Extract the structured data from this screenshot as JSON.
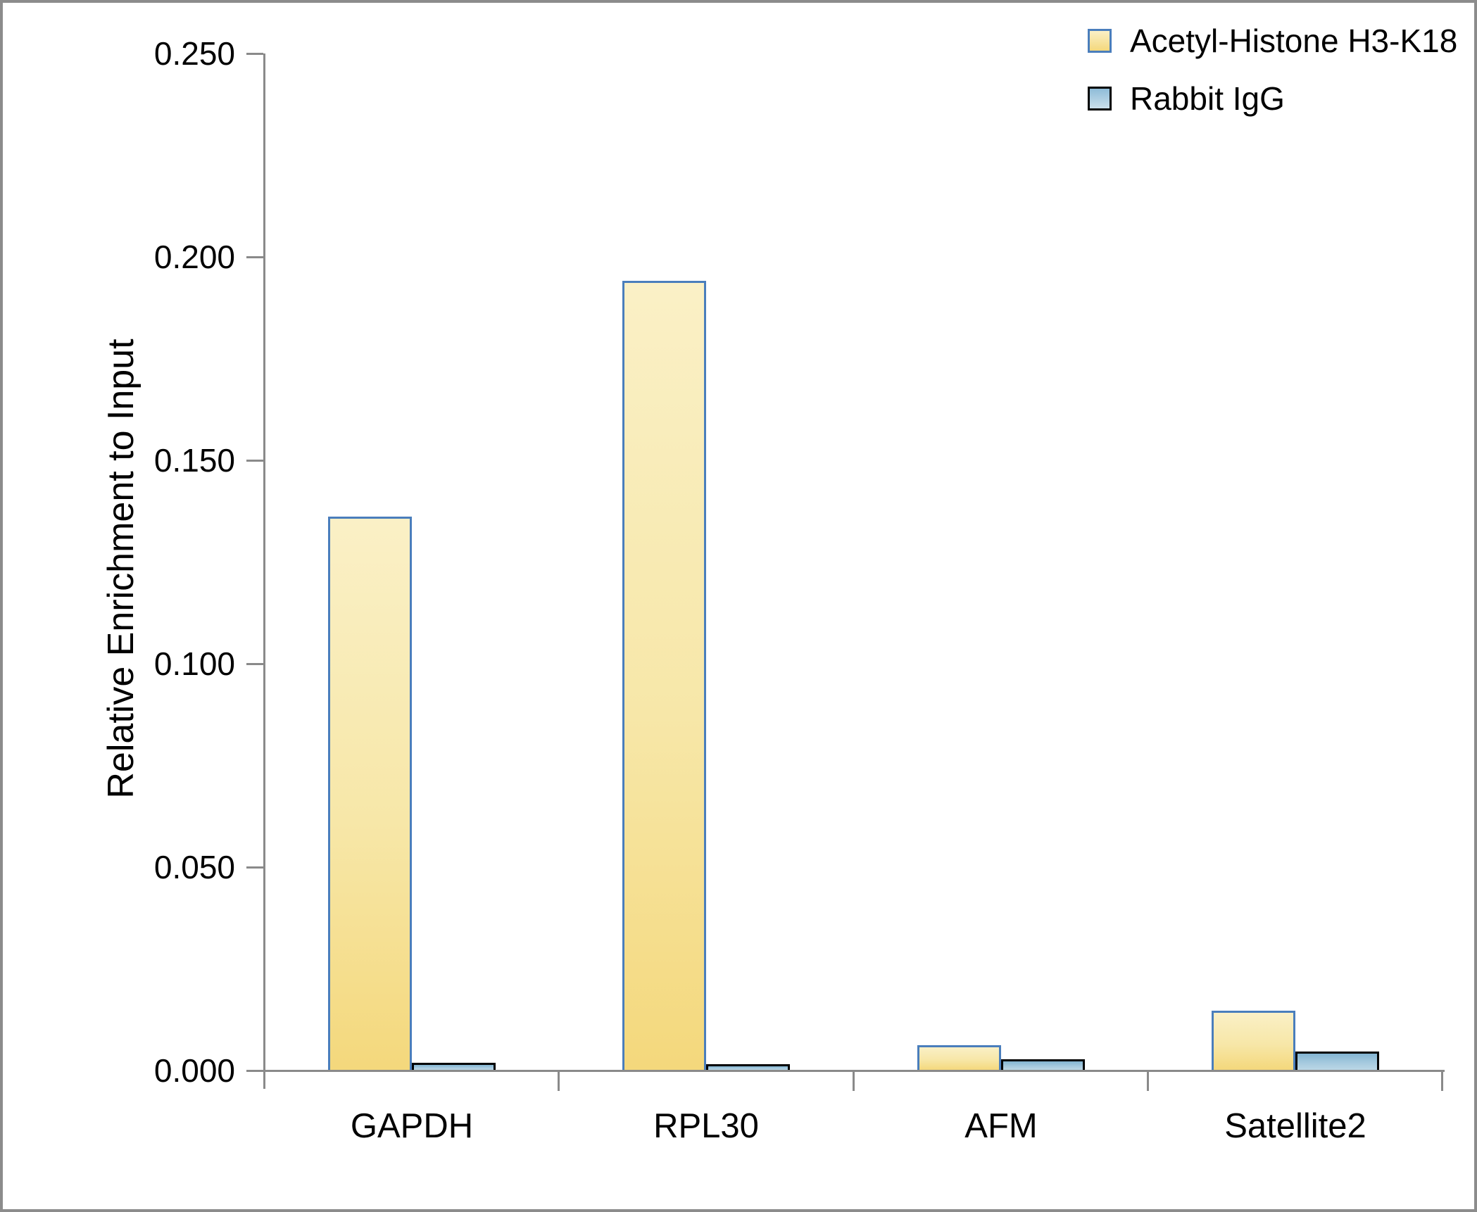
{
  "chart_data": {
    "type": "bar",
    "title": "",
    "xlabel": "",
    "ylabel": "Relative Enrichment to Input",
    "ylim": [
      0,
      0.25
    ],
    "ytick_step": 0.05,
    "y_tick_labels": [
      "0.250",
      "0.200",
      "0.150",
      "0.100",
      "0.050",
      "0.000"
    ],
    "grid": false,
    "legend_position": "top-right",
    "categories": [
      "GAPDH",
      "RPL30",
      "AFM",
      "Satellite2"
    ],
    "series": [
      {
        "name": "Acetyl-Histone H3-K18",
        "values": [
          0.136,
          0.194,
          0.006,
          0.0145
        ],
        "fill_gradient": [
          "#faf0c6",
          "#f4d87c"
        ],
        "border_color": "#4a7ebc"
      },
      {
        "name": "Rabbit IgG",
        "values": [
          0.0018,
          0.0013,
          0.0026,
          0.0045
        ],
        "fill_gradient": [
          "#82b4d1",
          "#bcd7e6"
        ],
        "border_color": "#000000"
      }
    ],
    "axis_color": "#8a8a8a"
  },
  "legend": {
    "items": [
      {
        "label": "Acetyl-Histone H3-K18"
      },
      {
        "label": "Rabbit IgG"
      }
    ]
  }
}
